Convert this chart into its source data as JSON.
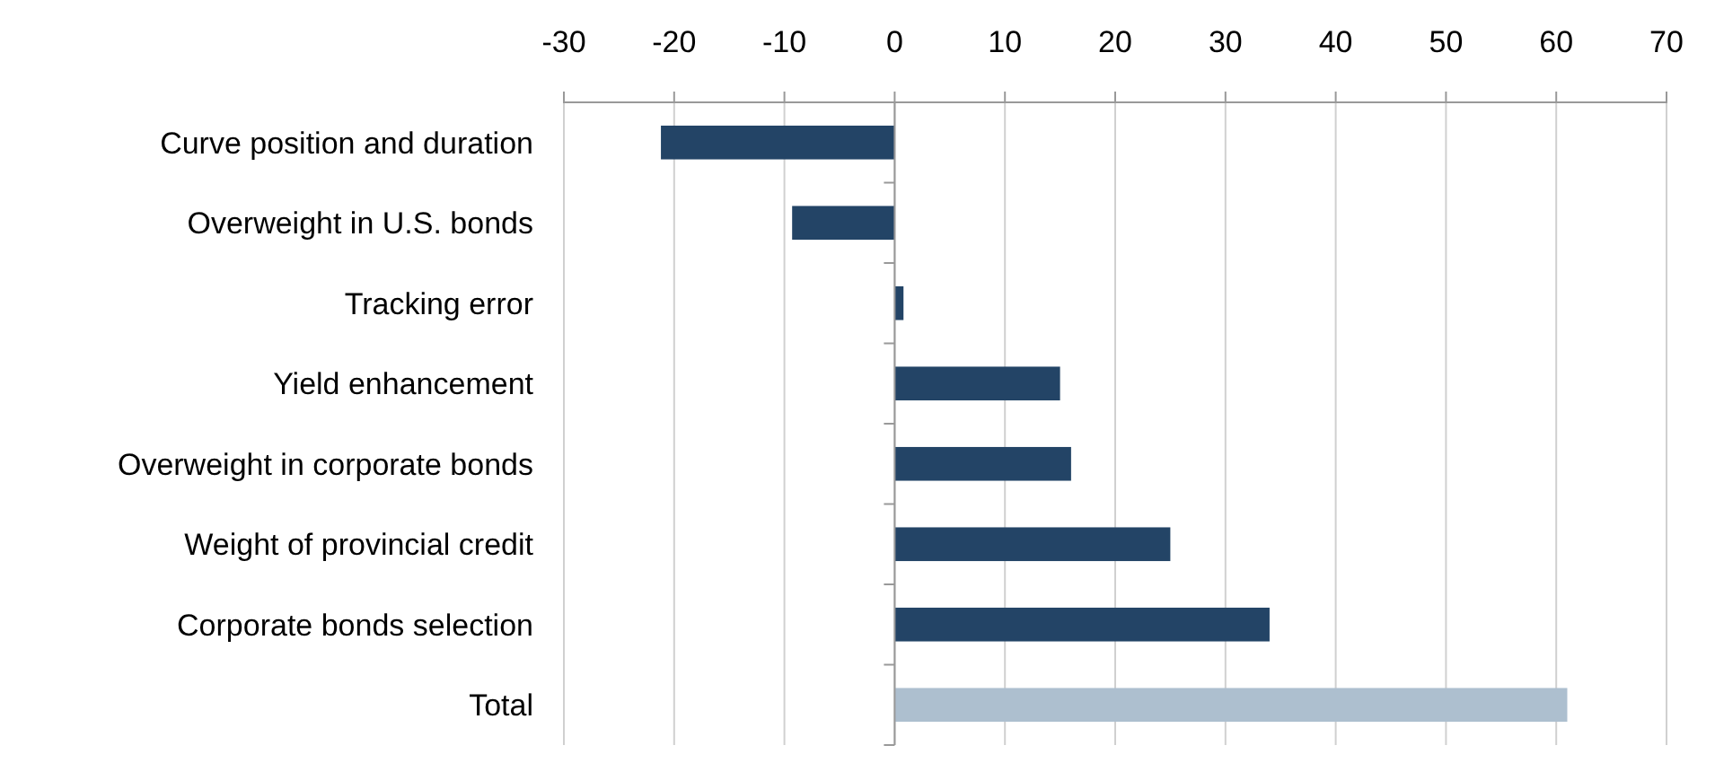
{
  "chart_data": {
    "type": "bar",
    "orientation": "horizontal",
    "categories": [
      "Curve position and duration",
      "Overweight in U.S. bonds",
      "Tracking error",
      "Yield enhancement",
      "Overweight in corporate bonds",
      "Weight of provincial credit",
      "Corporate bonds selection",
      "Total"
    ],
    "values": [
      -21.2,
      -9.3,
      0.8,
      15,
      16,
      25,
      34,
      61
    ],
    "colors": [
      "#234466",
      "#234466",
      "#234466",
      "#234466",
      "#234466",
      "#234466",
      "#234466",
      "#adbfcf"
    ],
    "xlim": [
      -30,
      70
    ],
    "xticks": [
      -30,
      -20,
      -10,
      0,
      10,
      20,
      30,
      40,
      50,
      60,
      70
    ],
    "grid": "x"
  }
}
